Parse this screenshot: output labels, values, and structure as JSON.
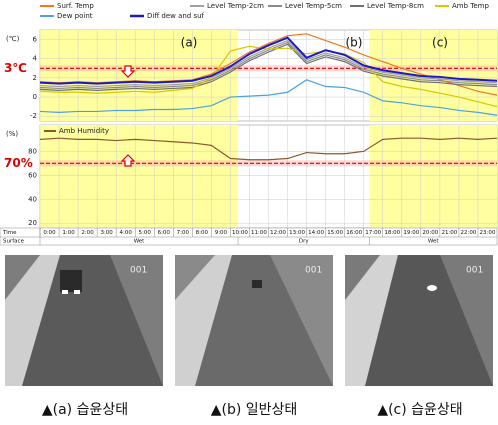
{
  "chart_data": [
    {
      "type": "line",
      "ylabel": "(℃)",
      "x": [
        0,
        1,
        2,
        3,
        4,
        5,
        6,
        7,
        8,
        9,
        10,
        11,
        12,
        13,
        14,
        15,
        16,
        17,
        18,
        19,
        20,
        21,
        22,
        23,
        24
      ],
      "series": [
        {
          "name": "Surf. Temp",
          "color": "#f07820",
          "values": [
            1.6,
            1.5,
            1.6,
            1.5,
            1.6,
            1.7,
            1.6,
            1.7,
            1.8,
            2.4,
            3.5,
            4.7,
            5.6,
            6.4,
            6.6,
            5.9,
            5.2,
            4.4,
            3.7,
            3.0,
            2.4,
            1.8,
            1.2,
            0.6,
            0.2
          ]
        },
        {
          "name": "Level Temp-2cm",
          "color": "#a0a0a0",
          "values": [
            1.2,
            1.1,
            1.2,
            1.1,
            1.2,
            1.3,
            1.2,
            1.3,
            1.4,
            2.0,
            3.0,
            4.2,
            5.1,
            5.9,
            3.9,
            4.6,
            4.1,
            3.1,
            2.6,
            2.3,
            2.0,
            1.9,
            1.7,
            1.6,
            1.5
          ]
        },
        {
          "name": "Level Temp-5cm",
          "color": "#8a8a8a",
          "values": [
            1.0,
            0.9,
            1.0,
            0.9,
            1.0,
            1.1,
            1.0,
            1.1,
            1.2,
            1.8,
            2.8,
            4.0,
            4.9,
            5.7,
            3.7,
            4.4,
            3.9,
            2.9,
            2.4,
            2.1,
            1.8,
            1.7,
            1.5,
            1.4,
            1.3
          ]
        },
        {
          "name": "Level Temp-8cm",
          "color": "#707070",
          "values": [
            0.8,
            0.7,
            0.8,
            0.7,
            0.8,
            0.9,
            0.8,
            0.9,
            1.0,
            1.6,
            2.6,
            3.8,
            4.7,
            5.5,
            3.5,
            4.2,
            3.7,
            2.7,
            2.2,
            1.9,
            1.6,
            1.5,
            1.3,
            1.2,
            1.1
          ]
        },
        {
          "name": "Amb Temp",
          "color": "#d8c800",
          "values": [
            0.6,
            0.5,
            0.5,
            0.4,
            0.5,
            0.6,
            0.5,
            0.7,
            0.9,
            2.0,
            4.8,
            5.3,
            5.0,
            5.1,
            4.5,
            4.8,
            4.5,
            3.6,
            1.6,
            1.1,
            0.8,
            0.4,
            0.0,
            -0.5,
            -1.0
          ]
        },
        {
          "name": "Dew point",
          "color": "#4aa3df",
          "values": [
            -1.5,
            -1.6,
            -1.5,
            -1.5,
            -1.4,
            -1.4,
            -1.3,
            -1.3,
            -1.2,
            -0.9,
            0.0,
            0.1,
            0.2,
            0.5,
            1.8,
            1.1,
            1.0,
            0.5,
            -0.4,
            -0.6,
            -0.9,
            -1.1,
            -1.4,
            -1.6,
            -1.9
          ]
        },
        {
          "name": "Diff dew and suf",
          "color": "#1a1acc",
          "values": [
            1.5,
            1.4,
            1.5,
            1.4,
            1.5,
            1.6,
            1.5,
            1.6,
            1.7,
            2.2,
            3.2,
            4.5,
            5.4,
            6.2,
            4.1,
            4.9,
            4.4,
            3.3,
            2.8,
            2.5,
            2.2,
            2.1,
            1.9,
            1.8,
            1.7
          ]
        }
      ],
      "xlim": [
        0,
        24
      ],
      "ylim": [
        -2.5,
        7
      ],
      "yticks": [
        6,
        4,
        2,
        0,
        -2
      ],
      "threshold": 3,
      "threshold_label": "3℃",
      "threshold_color": "#e00000",
      "shaded": [
        [
          0,
          10.4
        ],
        [
          17.3,
          24
        ]
      ],
      "shade_color": "#ffffa0",
      "annotations": [
        "(a)",
        "(b)",
        "(c)"
      ]
    },
    {
      "type": "line",
      "ylabel": "(%)",
      "xlabel": "Time",
      "x": [
        0,
        1,
        2,
        3,
        4,
        5,
        6,
        7,
        8,
        9,
        10,
        11,
        12,
        13,
        14,
        15,
        16,
        17,
        18,
        19,
        20,
        21,
        22,
        23,
        24
      ],
      "series": [
        {
          "name": "Amb Humidity",
          "color": "#8b5a2b",
          "values": [
            90,
            91,
            90,
            90,
            89,
            90,
            89,
            88,
            87,
            85,
            74,
            73,
            73,
            74,
            79,
            78,
            78,
            80,
            90,
            91,
            91,
            90,
            91,
            90,
            91
          ]
        }
      ],
      "xlim": [
        0,
        24
      ],
      "ylim": [
        16,
        102
      ],
      "yticks": [
        80,
        60,
        40,
        20
      ],
      "xticks": [
        {
          "value": 0,
          "label": "0:00"
        },
        {
          "value": 1,
          "label": "1:00"
        },
        {
          "value": 2,
          "label": "2:00"
        },
        {
          "value": 3,
          "label": "3:00"
        },
        {
          "value": 4,
          "label": "4:00"
        },
        {
          "value": 5,
          "label": "5:00"
        },
        {
          "value": 6,
          "label": "6:00"
        },
        {
          "value": 7,
          "label": "7:00"
        },
        {
          "value": 8,
          "label": "8:00"
        },
        {
          "value": 9,
          "label": "9:00"
        },
        {
          "value": 10,
          "label": "10:00"
        },
        {
          "value": 11,
          "label": "11:00"
        },
        {
          "value": 12,
          "label": "12:00"
        },
        {
          "value": 13,
          "label": "13:00"
        },
        {
          "value": 14,
          "label": "14:00"
        },
        {
          "value": 15,
          "label": "15:00"
        },
        {
          "value": 16,
          "label": "16:00"
        },
        {
          "value": 17,
          "label": "17:00"
        },
        {
          "value": 18,
          "label": "18:00"
        },
        {
          "value": 19,
          "label": "19:00"
        },
        {
          "value": 20,
          "label": "20:00"
        },
        {
          "value": 21,
          "label": "21:00"
        },
        {
          "value": 22,
          "label": "22:00"
        },
        {
          "value": 23,
          "label": "23:00"
        }
      ],
      "threshold": 70,
      "threshold_label": "70%",
      "threshold_color": "#e00000",
      "shaded": [
        [
          0,
          10.4
        ],
        [
          17.3,
          24
        ]
      ],
      "shade_color": "#ffffa0",
      "surface_label": "Surface",
      "surface_segments": [
        "Wet",
        "Dry",
        "Wet"
      ]
    }
  ],
  "photos": [
    {
      "caption": "▲(a) 습윤상태"
    },
    {
      "caption": "▲(b) 일반상태"
    },
    {
      "caption": "▲(c) 습윤상태"
    }
  ]
}
